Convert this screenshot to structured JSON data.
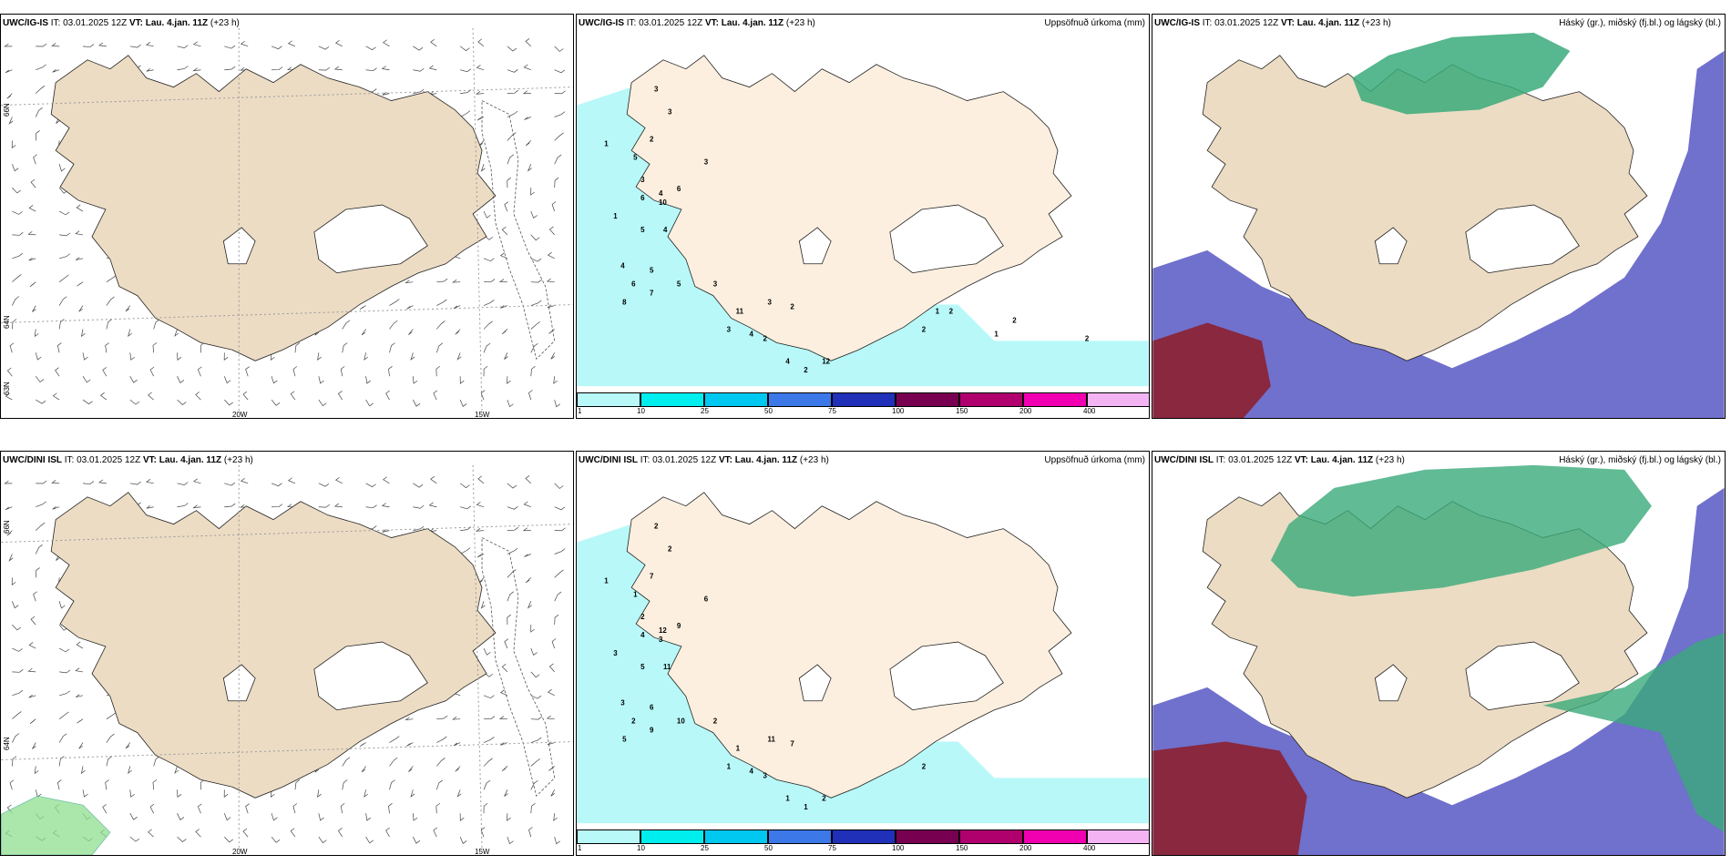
{
  "panels": [
    {
      "id": "p1",
      "model": "UWC/IG-IS",
      "it_label": "IT:",
      "it": "03.01.2025 12Z",
      "vt_label": "VT:",
      "vt": "Lau. 4.jan. 11Z",
      "lead": "(+23 h)",
      "right_title": ""
    },
    {
      "id": "p2",
      "model": "UWC/IG-IS",
      "it_label": "IT:",
      "it": "03.01.2025 12Z",
      "vt_label": "VT:",
      "vt": "Lau. 4.jan. 11Z",
      "lead": "(+23 h)",
      "right_title": "Uppsöfnuð úrkoma (mm)"
    },
    {
      "id": "p3",
      "model": "UWC/IG-IS",
      "it_label": "IT:",
      "it": "03.01.2025 12Z",
      "vt_label": "VT:",
      "vt": "Lau. 4.jan. 11Z",
      "lead": "(+23 h)",
      "right_title": "Háský (gr.), miðský (fj.bl.) og lágský (bl.)"
    },
    {
      "id": "p4",
      "model": "UWC/DINI ISL",
      "it_label": "IT:",
      "it": "03.01.2025 12Z",
      "vt_label": "VT:",
      "vt": "Lau. 4.jan. 11Z",
      "lead": "(+23 h)",
      "right_title": ""
    },
    {
      "id": "p5",
      "model": "UWC/DINI ISL",
      "it_label": "IT:",
      "it": "03.01.2025 12Z",
      "vt_label": "VT:",
      "vt": "Lau. 4.jan. 11Z",
      "lead": "(+23 h)",
      "right_title": "Uppsöfnuð úrkoma (mm)"
    },
    {
      "id": "p6",
      "model": "UWC/DINI ISL",
      "it_label": "IT:",
      "it": "03.01.2025 12Z",
      "vt_label": "VT:",
      "vt": "Lau. 4.jan. 11Z",
      "lead": "(+23 h)",
      "right_title": "Háský (gr.), miðský (fj.bl.) og lágský (bl.)"
    }
  ],
  "axis_labels": {
    "lon_20w": "20W",
    "lon_15w": "15W",
    "lat_66n": "66N",
    "lat_64n": "64N",
    "lat_63n": "63N"
  },
  "precip_legend": {
    "ticks": [
      "1",
      "10",
      "25",
      "50",
      "75",
      "100",
      "150",
      "200",
      "400"
    ],
    "colors": [
      "#b8f8f8",
      "#00eeee",
      "#00c8f0",
      "#3c78e8",
      "#2030b8",
      "#780050",
      "#b0006e",
      "#f000b0",
      "#f4b4f4"
    ]
  },
  "precip_values_top": [
    "1",
    "3",
    "3",
    "2",
    "5",
    "3",
    "4",
    "6",
    "6",
    "10",
    "3",
    "1",
    "5",
    "4",
    "4",
    "5",
    "6",
    "7",
    "8",
    "5",
    "3",
    "11",
    "4",
    "3",
    "2",
    "3",
    "2",
    "12",
    "4",
    "2",
    "2",
    "1",
    "2",
    "1",
    "2",
    "2"
  ],
  "precip_values_bottom": [
    "1",
    "2",
    "2",
    "7",
    "1",
    "2",
    "12",
    "9",
    "4",
    "3",
    "6",
    "3",
    "5",
    "11",
    "3",
    "6",
    "2",
    "9",
    "5",
    "10",
    "2",
    "1",
    "4",
    "1",
    "3",
    "11",
    "7",
    "2",
    "1",
    "1",
    "2"
  ],
  "colors": {
    "land": "#ecdcc4",
    "land_light": "#fcefdf",
    "ocean": "#ffffff",
    "precip": "#b8f8f8",
    "low_cloud": "#6060c8",
    "mid_cloud": "#6aa0ec",
    "high_cloud": "#3aaa7a",
    "red": "#8c2030"
  }
}
